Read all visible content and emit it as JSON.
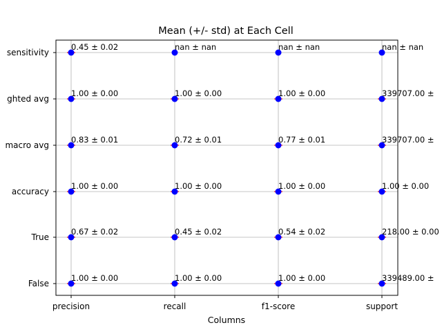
{
  "chart_data": {
    "type": "scatter",
    "title": "Mean (+/- std) at Each Cell",
    "xlabel": "Columns",
    "ylabel": "",
    "grid": true,
    "x_categories": [
      "precision",
      "recall",
      "f1-score",
      "support"
    ],
    "y_categories": [
      "False",
      "True",
      "accuracy",
      "macro avg",
      "weighted avg",
      "sensitivity"
    ],
    "y_tick_labels_shown": [
      "False",
      "True",
      "accuracy",
      "macro avg",
      "ghted avg",
      "sensitivity"
    ],
    "marker_color": "#0000ff",
    "errorbar_color": "#ff0000",
    "points": [
      {
        "x": "precision",
        "y": "False",
        "label": "1.00 ± 0.00"
      },
      {
        "x": "recall",
        "y": "False",
        "label": "1.00 ± 0.00"
      },
      {
        "x": "f1-score",
        "y": "False",
        "label": "1.00 ± 0.00"
      },
      {
        "x": "support",
        "y": "False",
        "label": "339489.00 ±"
      },
      {
        "x": "precision",
        "y": "True",
        "label": "0.67 ± 0.02"
      },
      {
        "x": "recall",
        "y": "True",
        "label": "0.45 ± 0.02"
      },
      {
        "x": "f1-score",
        "y": "True",
        "label": "0.54 ± 0.02"
      },
      {
        "x": "support",
        "y": "True",
        "label": "218.00 ± 0.00"
      },
      {
        "x": "precision",
        "y": "accuracy",
        "label": "1.00 ± 0.00"
      },
      {
        "x": "recall",
        "y": "accuracy",
        "label": "1.00 ± 0.00"
      },
      {
        "x": "f1-score",
        "y": "accuracy",
        "label": "1.00 ± 0.00"
      },
      {
        "x": "support",
        "y": "accuracy",
        "label": "1.00 ± 0.00"
      },
      {
        "x": "precision",
        "y": "macro avg",
        "label": "0.83 ± 0.01"
      },
      {
        "x": "recall",
        "y": "macro avg",
        "label": "0.72 ± 0.01"
      },
      {
        "x": "f1-score",
        "y": "macro avg",
        "label": "0.77 ± 0.01"
      },
      {
        "x": "support",
        "y": "macro avg",
        "label": "339707.00 ±"
      },
      {
        "x": "precision",
        "y": "weighted avg",
        "label": "1.00 ± 0.00"
      },
      {
        "x": "recall",
        "y": "weighted avg",
        "label": "1.00 ± 0.00"
      },
      {
        "x": "f1-score",
        "y": "weighted avg",
        "label": "1.00 ± 0.00"
      },
      {
        "x": "support",
        "y": "weighted avg",
        "label": "339707.00 ±"
      },
      {
        "x": "precision",
        "y": "sensitivity",
        "label": "0.45 ± 0.02"
      },
      {
        "x": "recall",
        "y": "sensitivity",
        "label": "nan ± nan"
      },
      {
        "x": "f1-score",
        "y": "sensitivity",
        "label": "nan ± nan"
      },
      {
        "x": "support",
        "y": "sensitivity",
        "label": "nan ± nan"
      }
    ]
  }
}
